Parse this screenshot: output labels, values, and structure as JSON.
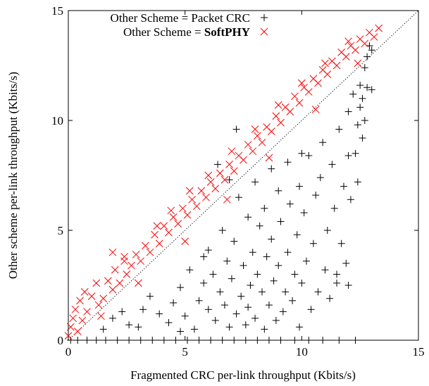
{
  "chart_data": {
    "type": "scatter",
    "xlabel": "Fragmented CRC per-link throughput (Kbits/s)",
    "ylabel": "Other scheme per-link throughput (Kbits/s)",
    "xlim": [
      0,
      15
    ],
    "ylim": [
      0,
      15
    ],
    "x_ticks": [
      "0",
      "5",
      "10",
      "15"
    ],
    "y_ticks": [
      "0",
      "5",
      "10",
      "15"
    ],
    "grid": false,
    "legend_placement": "top-left",
    "reference_line": "y = x (dotted)",
    "series": [
      {
        "name_prefix": "Other Scheme = ",
        "name_emphasis": "Packet CRC",
        "marker": "plus",
        "color": "#000000",
        "points": [
          [
            0.1,
            0.0
          ],
          [
            0.4,
            0.0
          ],
          [
            0.8,
            0.0
          ],
          [
            1.2,
            0.0
          ],
          [
            1.6,
            0.0
          ],
          [
            2.1,
            0.0
          ],
          [
            2.6,
            0.0
          ],
          [
            3.1,
            0.0
          ],
          [
            3.6,
            0.0
          ],
          [
            4.1,
            0.0
          ],
          [
            4.6,
            0.0
          ],
          [
            5.1,
            0.0
          ],
          [
            5.6,
            0.0
          ],
          [
            6.1,
            0.0
          ],
          [
            6.6,
            0.0
          ],
          [
            7.1,
            0.0
          ],
          [
            7.6,
            0.0
          ],
          [
            8.1,
            0.0
          ],
          [
            8.6,
            0.0
          ],
          [
            9.1,
            0.0
          ],
          [
            9.7,
            0.0
          ],
          [
            10.3,
            0.0
          ],
          [
            10.9,
            0.0
          ],
          [
            11.6,
            0.0
          ],
          [
            12.3,
            0.0
          ],
          [
            1.5,
            0.5
          ],
          [
            1.9,
            1.0
          ],
          [
            2.3,
            1.3
          ],
          [
            2.6,
            0.7
          ],
          [
            3.0,
            0.6
          ],
          [
            3.2,
            1.4
          ],
          [
            3.5,
            2.0
          ],
          [
            3.9,
            1.2
          ],
          [
            4.3,
            0.8
          ],
          [
            4.5,
            1.7
          ],
          [
            4.8,
            2.4
          ],
          [
            5.0,
            1.1
          ],
          [
            5.2,
            3.2
          ],
          [
            5.4,
            0.5
          ],
          [
            5.6,
            1.8
          ],
          [
            5.8,
            2.6
          ],
          [
            6.0,
            4.1
          ],
          [
            6.0,
            1.4
          ],
          [
            6.2,
            3.0
          ],
          [
            6.3,
            0.9
          ],
          [
            6.5,
            2.2
          ],
          [
            6.6,
            5.0
          ],
          [
            6.7,
            1.6
          ],
          [
            6.8,
            3.6
          ],
          [
            6.9,
            0.6
          ],
          [
            7.0,
            2.8
          ],
          [
            7.1,
            4.5
          ],
          [
            7.2,
            1.2
          ],
          [
            7.3,
            6.5
          ],
          [
            7.4,
            2.0
          ],
          [
            7.5,
            3.4
          ],
          [
            7.6,
            0.7
          ],
          [
            7.7,
            5.6
          ],
          [
            7.7,
            1.5
          ],
          [
            7.8,
            2.5
          ],
          [
            7.9,
            4.0
          ],
          [
            8.0,
            7.2
          ],
          [
            8.0,
            1.0
          ],
          [
            8.1,
            3.0
          ],
          [
            8.2,
            5.2
          ],
          [
            8.3,
            2.2
          ],
          [
            8.4,
            6.0
          ],
          [
            8.4,
            0.5
          ],
          [
            8.5,
            3.8
          ],
          [
            8.6,
            1.6
          ],
          [
            8.7,
            7.8
          ],
          [
            8.7,
            4.6
          ],
          [
            8.8,
            2.7
          ],
          [
            8.9,
            0.9
          ],
          [
            9.0,
            6.8
          ],
          [
            9.0,
            3.4
          ],
          [
            9.1,
            5.4
          ],
          [
            9.2,
            1.3
          ],
          [
            9.3,
            2.2
          ],
          [
            9.4,
            8.1
          ],
          [
            9.4,
            4.0
          ],
          [
            9.5,
            6.2
          ],
          [
            9.6,
            1.8
          ],
          [
            9.7,
            3.0
          ],
          [
            9.8,
            4.8
          ],
          [
            9.9,
            7.0
          ],
          [
            9.9,
            0.6
          ],
          [
            10.0,
            2.6
          ],
          [
            10.1,
            5.8
          ],
          [
            10.2,
            3.6
          ],
          [
            10.3,
            8.4
          ],
          [
            10.4,
            1.4
          ],
          [
            10.5,
            4.4
          ],
          [
            10.6,
            6.6
          ],
          [
            10.7,
            2.2
          ],
          [
            10.8,
            7.4
          ],
          [
            10.9,
            9.0
          ],
          [
            11.0,
            3.2
          ],
          [
            11.1,
            5.0
          ],
          [
            11.2,
            1.9
          ],
          [
            11.3,
            8.0
          ],
          [
            11.4,
            6.0
          ],
          [
            11.5,
            2.6
          ],
          [
            11.6,
            9.6
          ],
          [
            11.7,
            4.4
          ],
          [
            11.8,
            7.0
          ],
          [
            11.9,
            3.5
          ],
          [
            12.0,
            10.4
          ],
          [
            12.0,
            8.4
          ],
          [
            12.1,
            6.4
          ],
          [
            12.2,
            11.2
          ],
          [
            12.3,
            8.5
          ],
          [
            12.4,
            9.8
          ],
          [
            12.4,
            7.2
          ],
          [
            12.5,
            10.6
          ],
          [
            12.5,
            11.6
          ],
          [
            12.6,
            9.2
          ],
          [
            12.6,
            11.0
          ],
          [
            12.7,
            12.4
          ],
          [
            12.7,
            10.0
          ],
          [
            12.8,
            12.9
          ],
          [
            12.8,
            11.5
          ],
          [
            12.9,
            13.4
          ],
          [
            13.0,
            11.4
          ],
          [
            13.0,
            13.2
          ],
          [
            6.4,
            8.0
          ],
          [
            7.2,
            9.6
          ],
          [
            5.8,
            3.8
          ],
          [
            4.8,
            0.4
          ],
          [
            10.0,
            8.5
          ],
          [
            11.5,
            3.0
          ],
          [
            12.0,
            2.5
          ],
          [
            6.9,
            7.3
          ]
        ]
      },
      {
        "name_prefix": "Other Scheme = ",
        "name_emphasis": "SoftPHY",
        "marker": "cross",
        "color": "#ff0000",
        "points": [
          [
            0.0,
            0.2
          ],
          [
            0.1,
            0.6
          ],
          [
            0.2,
            1.0
          ],
          [
            0.3,
            1.4
          ],
          [
            0.4,
            0.4
          ],
          [
            0.5,
            1.8
          ],
          [
            0.6,
            0.9
          ],
          [
            0.7,
            2.2
          ],
          [
            0.8,
            1.3
          ],
          [
            1.0,
            2.0
          ],
          [
            1.2,
            2.6
          ],
          [
            1.3,
            1.6
          ],
          [
            1.5,
            1.9
          ],
          [
            1.7,
            2.7
          ],
          [
            1.9,
            2.3
          ],
          [
            2.0,
            3.2
          ],
          [
            2.2,
            2.6
          ],
          [
            2.4,
            3.6
          ],
          [
            2.5,
            3.0
          ],
          [
            2.7,
            3.4
          ],
          [
            2.9,
            3.9
          ],
          [
            3.1,
            3.6
          ],
          [
            3.3,
            4.3
          ],
          [
            3.5,
            4.0
          ],
          [
            3.7,
            4.8
          ],
          [
            3.9,
            4.4
          ],
          [
            4.1,
            5.2
          ],
          [
            4.3,
            4.9
          ],
          [
            4.5,
            5.6
          ],
          [
            4.7,
            5.3
          ],
          [
            4.9,
            6.0
          ],
          [
            5.1,
            5.7
          ],
          [
            5.3,
            6.4
          ],
          [
            5.5,
            6.1
          ],
          [
            5.7,
            6.8
          ],
          [
            5.9,
            6.5
          ],
          [
            6.1,
            7.2
          ],
          [
            6.3,
            6.9
          ],
          [
            6.5,
            7.6
          ],
          [
            6.7,
            7.3
          ],
          [
            6.9,
            8.0
          ],
          [
            7.1,
            7.7
          ],
          [
            7.3,
            8.4
          ],
          [
            7.5,
            8.2
          ],
          [
            7.7,
            8.9
          ],
          [
            7.9,
            8.6
          ],
          [
            8.1,
            9.3
          ],
          [
            8.3,
            9.0
          ],
          [
            8.5,
            9.7
          ],
          [
            8.7,
            9.5
          ],
          [
            8.9,
            10.2
          ],
          [
            9.1,
            9.9
          ],
          [
            9.3,
            10.6
          ],
          [
            9.5,
            10.4
          ],
          [
            9.7,
            11.1
          ],
          [
            9.9,
            10.8
          ],
          [
            10.1,
            11.5
          ],
          [
            10.3,
            11.3
          ],
          [
            10.5,
            11.9
          ],
          [
            10.7,
            11.7
          ],
          [
            10.9,
            12.3
          ],
          [
            11.1,
            12.1
          ],
          [
            11.3,
            12.7
          ],
          [
            11.5,
            12.5
          ],
          [
            11.7,
            13.1
          ],
          [
            11.9,
            12.9
          ],
          [
            12.1,
            13.4
          ],
          [
            12.3,
            13.2
          ],
          [
            12.5,
            13.7
          ],
          [
            12.7,
            13.5
          ],
          [
            12.9,
            14.0
          ],
          [
            13.1,
            13.8
          ],
          [
            13.3,
            14.2
          ],
          [
            1.9,
            4.0
          ],
          [
            2.4,
            3.8
          ],
          [
            3.8,
            5.2
          ],
          [
            4.4,
            5.9
          ],
          [
            5.2,
            6.8
          ],
          [
            6.0,
            7.5
          ],
          [
            7.0,
            8.6
          ],
          [
            8.0,
            9.6
          ],
          [
            9.0,
            10.7
          ],
          [
            10.0,
            11.7
          ],
          [
            11.0,
            12.6
          ],
          [
            12.0,
            13.6
          ],
          [
            1.4,
            1.1
          ],
          [
            3.0,
            2.6
          ],
          [
            5.0,
            4.5
          ],
          [
            6.8,
            6.4
          ],
          [
            8.6,
            8.3
          ],
          [
            10.6,
            10.5
          ],
          [
            12.4,
            12.6
          ]
        ]
      }
    ]
  }
}
